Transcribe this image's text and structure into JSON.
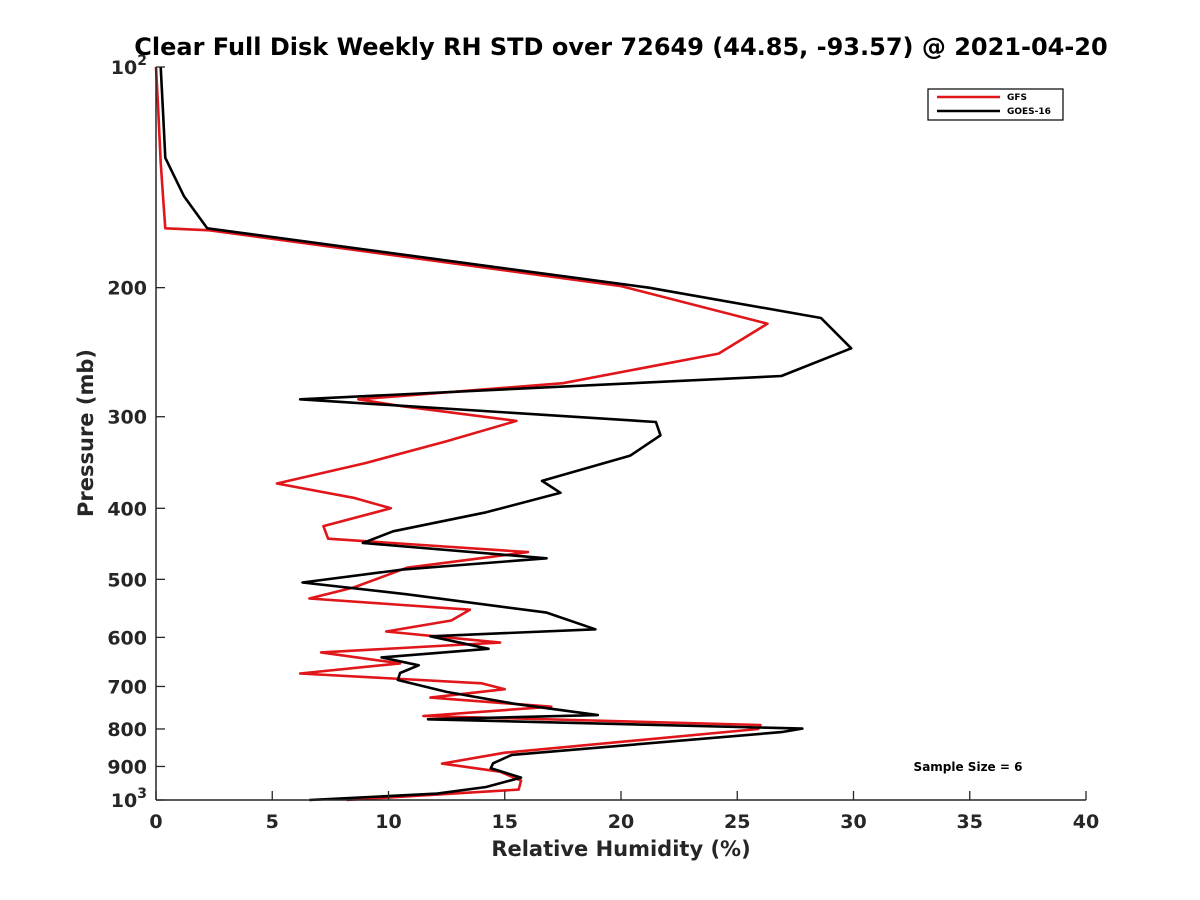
{
  "chart_data": {
    "type": "line",
    "title": "Clear Full Disk Weekly RH STD over 72649 (44.85, -93.57) @ 2021-04-20",
    "xlabel": "Relative Humidity (%)",
    "ylabel": "Pressure (mb)",
    "xlim": [
      0,
      40
    ],
    "ylim": [
      100,
      1000
    ],
    "y_scale": "log",
    "y_reversed": true,
    "x_ticks": [
      "0",
      "5",
      "10",
      "15",
      "20",
      "25",
      "30",
      "35",
      "40"
    ],
    "y_ticks": [
      {
        "value": 100,
        "base": "10",
        "exp": "2"
      },
      {
        "value": 200,
        "label": "200"
      },
      {
        "value": 300,
        "label": "300"
      },
      {
        "value": 400,
        "label": "400"
      },
      {
        "value": 500,
        "label": "500"
      },
      {
        "value": 600,
        "label": "600"
      },
      {
        "value": 700,
        "label": "700"
      },
      {
        "value": 800,
        "label": "800"
      },
      {
        "value": 900,
        "label": "900"
      },
      {
        "value": 1000,
        "base": "10",
        "exp": "3"
      }
    ],
    "legend_position": "top-right",
    "grid": false,
    "annotation": "Sample Size = 6",
    "series": [
      {
        "name": "GFS",
        "color": "#e0161b",
        "points": [
          [
            0.0,
            100
          ],
          [
            0.1,
            115
          ],
          [
            0.2,
            135
          ],
          [
            0.3,
            150
          ],
          [
            0.4,
            166
          ],
          [
            2.3,
            167
          ],
          [
            20.0,
            199
          ],
          [
            26.3,
            224
          ],
          [
            24.2,
            246
          ],
          [
            17.5,
            270
          ],
          [
            8.7,
            284
          ],
          [
            10.5,
            290
          ],
          [
            15.5,
            304
          ],
          [
            12.5,
            324
          ],
          [
            9.0,
            347
          ],
          [
            5.2,
            370
          ],
          [
            8.5,
            387
          ],
          [
            10.1,
            400
          ],
          [
            7.2,
            423
          ],
          [
            7.4,
            440
          ],
          [
            16.0,
            459
          ],
          [
            10.8,
            482
          ],
          [
            8.5,
            513
          ],
          [
            6.6,
            531
          ],
          [
            13.5,
            550
          ],
          [
            12.7,
            569
          ],
          [
            9.9,
            589
          ],
          [
            14.8,
            610
          ],
          [
            7.1,
            629
          ],
          [
            10.5,
            651
          ],
          [
            6.2,
            672
          ],
          [
            14.0,
            693
          ],
          [
            15.0,
            706
          ],
          [
            11.8,
            725
          ],
          [
            17.0,
            746
          ],
          [
            11.5,
            768
          ],
          [
            26.0,
            790
          ],
          [
            25.9,
            800
          ],
          [
            15.0,
            862
          ],
          [
            12.3,
            892
          ],
          [
            14.8,
            915
          ],
          [
            15.7,
            941
          ],
          [
            15.6,
            968
          ],
          [
            8.2,
            1000
          ]
        ]
      },
      {
        "name": "GOES-16",
        "color": "#000000",
        "points": [
          [
            0.2,
            100
          ],
          [
            0.3,
            115
          ],
          [
            0.4,
            133
          ],
          [
            1.2,
            150
          ],
          [
            2.2,
            166
          ],
          [
            21.2,
            200
          ],
          [
            28.6,
            220
          ],
          [
            29.9,
            242
          ],
          [
            26.9,
            264
          ],
          [
            6.2,
            284
          ],
          [
            21.5,
            305
          ],
          [
            21.7,
            318
          ],
          [
            20.4,
            339
          ],
          [
            16.6,
            367
          ],
          [
            17.4,
            381
          ],
          [
            14.2,
            405
          ],
          [
            10.2,
            430
          ],
          [
            8.9,
            446
          ],
          [
            16.8,
            468
          ],
          [
            10.6,
            485
          ],
          [
            6.3,
            505
          ],
          [
            10.8,
            524
          ],
          [
            16.8,
            555
          ],
          [
            18.9,
            585
          ],
          [
            11.8,
            598
          ],
          [
            14.3,
            622
          ],
          [
            9.7,
            639
          ],
          [
            11.3,
            655
          ],
          [
            10.5,
            671
          ],
          [
            10.4,
            686
          ],
          [
            12.5,
            712
          ],
          [
            15.5,
            740
          ],
          [
            19.0,
            766
          ],
          [
            11.7,
            776
          ],
          [
            27.8,
            799
          ],
          [
            26.9,
            808
          ],
          [
            15.3,
            868
          ],
          [
            14.5,
            891
          ],
          [
            14.4,
            905
          ],
          [
            15.7,
            932
          ],
          [
            14.2,
            960
          ],
          [
            12.1,
            980
          ],
          [
            6.6,
            1000
          ]
        ]
      }
    ]
  }
}
